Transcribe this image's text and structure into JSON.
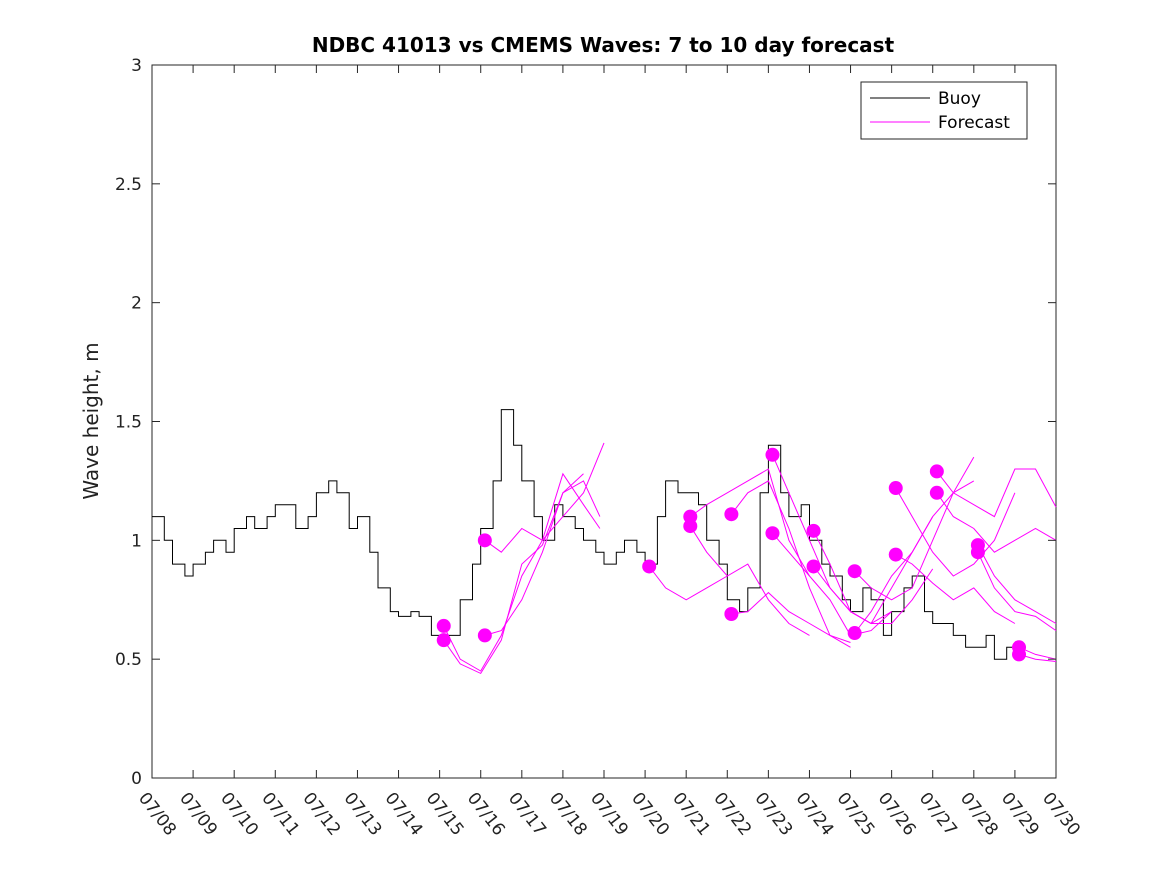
{
  "chart_data": {
    "type": "line",
    "title": "NDBC 41013 vs CMEMS Waves: 7 to 10 day forecast",
    "xlabel": "",
    "ylabel": "Wave height, m",
    "xlim": [
      "07/08",
      "07/30"
    ],
    "ylim": [
      0,
      3
    ],
    "x_tick_labels": [
      "07/08",
      "07/09",
      "07/10",
      "07/11",
      "07/12",
      "07/13",
      "07/14",
      "07/15",
      "07/16",
      "07/17",
      "07/18",
      "07/19",
      "07/20",
      "07/21",
      "07/22",
      "07/23",
      "07/24",
      "07/25",
      "07/26",
      "07/27",
      "07/28",
      "07/29",
      "07/30"
    ],
    "y_ticks": [
      0,
      0.5,
      1,
      1.5,
      2,
      2.5,
      3
    ],
    "y_tick_labels": [
      "0",
      "0.5",
      "1",
      "1.5",
      "2",
      "2.5",
      "3"
    ],
    "grid": false,
    "legend": {
      "position": "top-right",
      "entries": [
        "Buoy",
        "Forecast"
      ]
    },
    "colors": {
      "buoy": "#000000",
      "forecast": "#ff00ff"
    },
    "series": [
      {
        "name": "Buoy",
        "x_day_of_july": [
          8.0,
          8.3,
          8.5,
          8.8,
          9.0,
          9.3,
          9.5,
          9.8,
          10.0,
          10.3,
          10.5,
          10.8,
          11.0,
          11.3,
          11.5,
          11.8,
          12.0,
          12.3,
          12.5,
          12.8,
          13.0,
          13.3,
          13.5,
          13.8,
          14.0,
          14.3,
          14.5,
          14.8,
          15.0,
          15.3,
          15.5,
          15.8,
          16.0,
          16.3,
          16.5,
          16.8,
          17.0,
          17.3,
          17.5,
          17.8,
          18.0,
          18.3,
          18.5,
          18.8,
          19.0,
          19.3,
          19.5,
          19.8,
          20.0,
          20.3,
          20.5,
          20.8,
          21.0,
          21.3,
          21.5,
          21.8,
          22.0,
          22.3,
          22.5,
          22.8,
          23.0,
          23.3,
          23.5,
          23.8,
          24.0,
          24.3,
          24.5,
          24.8,
          25.0,
          25.3,
          25.5,
          25.8,
          26.0,
          26.3,
          26.5,
          26.8,
          27.0,
          27.3,
          27.5,
          27.8,
          28.0,
          28.3,
          28.5,
          28.8,
          29.0
        ],
        "values": [
          1.1,
          1.0,
          0.9,
          0.85,
          0.9,
          0.95,
          1.0,
          0.95,
          1.05,
          1.1,
          1.05,
          1.1,
          1.15,
          1.15,
          1.05,
          1.1,
          1.2,
          1.25,
          1.2,
          1.05,
          1.1,
          0.95,
          0.8,
          0.7,
          0.68,
          0.7,
          0.68,
          0.6,
          0.6,
          0.6,
          0.75,
          0.9,
          1.05,
          1.25,
          1.55,
          1.4,
          1.25,
          1.1,
          1.0,
          1.15,
          1.1,
          1.05,
          1.0,
          0.95,
          0.9,
          0.95,
          1.0,
          0.95,
          0.9,
          1.1,
          1.25,
          1.2,
          1.2,
          1.15,
          1.0,
          0.9,
          0.75,
          0.7,
          0.8,
          1.2,
          1.4,
          1.2,
          1.1,
          1.15,
          1.0,
          0.9,
          0.85,
          0.75,
          0.7,
          0.8,
          0.75,
          0.6,
          0.7,
          0.8,
          0.85,
          0.7,
          0.65,
          0.65,
          0.6,
          0.55,
          0.55,
          0.6,
          0.5,
          0.55,
          0.5
        ]
      },
      {
        "name": "Forecast",
        "runs": [
          {
            "x_day_of_july": [
              15.1,
              15.5,
              16.0,
              16.5,
              17.0,
              17.5,
              18.0,
              18.5,
              18.9
            ],
            "values": [
              0.64,
              0.5,
              0.45,
              0.6,
              0.85,
              1.0,
              1.28,
              1.15,
              1.05
            ]
          },
          {
            "x_day_of_july": [
              15.1,
              15.5,
              16.0,
              16.5,
              17.0,
              17.5,
              18.0,
              18.5,
              18.9
            ],
            "values": [
              0.58,
              0.48,
              0.44,
              0.58,
              0.9,
              0.98,
              1.2,
              1.25,
              1.1
            ]
          },
          {
            "x_day_of_july": [
              16.1,
              16.5,
              17.0,
              17.5,
              18.0,
              18.5,
              19.0
            ],
            "values": [
              1.0,
              0.95,
              1.05,
              1.0,
              1.1,
              1.2,
              1.41
            ]
          },
          {
            "x_day_of_july": [
              16.1,
              16.5,
              17.0,
              17.5,
              18.0,
              18.5
            ],
            "values": [
              0.6,
              0.62,
              0.75,
              0.95,
              1.2,
              1.28
            ]
          },
          {
            "x_day_of_july": [
              20.1,
              20.5,
              21.0,
              21.5,
              22.0
            ],
            "values": [
              0.89,
              0.8,
              0.75,
              0.8,
              0.85
            ]
          },
          {
            "x_day_of_july": [
              21.1,
              21.5,
              22.0,
              22.5,
              23.0,
              23.5,
              24.0
            ],
            "values": [
              1.1,
              1.15,
              1.2,
              1.25,
              1.3,
              1.0,
              0.85
            ]
          },
          {
            "x_day_of_july": [
              21.1,
              21.5,
              22.0,
              22.5,
              23.0,
              23.5,
              24.0
            ],
            "values": [
              1.06,
              0.95,
              0.85,
              0.9,
              0.75,
              0.65,
              0.6
            ]
          },
          {
            "x_day_of_july": [
              22.1,
              22.5,
              23.0,
              23.5,
              24.0,
              24.5,
              25.0
            ],
            "values": [
              1.11,
              1.2,
              1.25,
              1.05,
              0.8,
              0.6,
              0.57
            ]
          },
          {
            "x_day_of_july": [
              22.1,
              22.5,
              23.0,
              23.5,
              24.0,
              24.5,
              25.0
            ],
            "values": [
              0.69,
              0.7,
              0.78,
              0.7,
              0.65,
              0.6,
              0.55
            ]
          },
          {
            "x_day_of_july": [
              23.1,
              23.5,
              24.0,
              24.5,
              25.0,
              25.5,
              26.0
            ],
            "values": [
              1.36,
              1.2,
              1.0,
              0.8,
              0.7,
              0.65,
              0.7
            ]
          },
          {
            "x_day_of_july": [
              23.1,
              23.5,
              24.0,
              24.5,
              25.0,
              25.5,
              26.0
            ],
            "values": [
              1.03,
              0.95,
              0.85,
              0.75,
              0.6,
              0.62,
              0.7
            ]
          },
          {
            "x_day_of_july": [
              24.1,
              24.5,
              25.0,
              25.5,
              26.0,
              26.5,
              27.0
            ],
            "values": [
              1.04,
              0.9,
              0.7,
              0.65,
              0.65,
              0.75,
              0.88
            ]
          },
          {
            "x_day_of_july": [
              24.1,
              24.5,
              25.0,
              25.5,
              26.0,
              26.5,
              27.0
            ],
            "values": [
              0.89,
              0.8,
              0.7,
              0.65,
              0.8,
              0.95,
              1.1
            ]
          },
          {
            "x_day_of_july": [
              25.1,
              25.5,
              26.0,
              26.5,
              27.0,
              27.5,
              28.0
            ],
            "values": [
              0.87,
              0.8,
              0.75,
              0.8,
              1.0,
              1.2,
              1.35
            ]
          },
          {
            "x_day_of_july": [
              25.1,
              25.5,
              26.0,
              26.5,
              27.0,
              27.5,
              28.0
            ],
            "values": [
              0.61,
              0.7,
              0.85,
              0.95,
              1.1,
              1.2,
              1.25
            ]
          },
          {
            "x_day_of_july": [
              26.1,
              26.5,
              27.0,
              27.5,
              28.0,
              28.5,
              29.0
            ],
            "values": [
              1.22,
              1.1,
              0.95,
              0.85,
              0.9,
              1.0,
              1.2
            ]
          },
          {
            "x_day_of_july": [
              26.1,
              26.5,
              27.0,
              27.5,
              28.0,
              28.5,
              29.0
            ],
            "values": [
              0.94,
              0.9,
              0.82,
              0.75,
              0.8,
              0.7,
              0.65
            ]
          },
          {
            "x_day_of_july": [
              27.1,
              27.5,
              28.0,
              28.5,
              29.0,
              29.5,
              30.0
            ],
            "values": [
              1.29,
              1.2,
              1.15,
              1.1,
              1.3,
              1.3,
              1.14
            ]
          },
          {
            "x_day_of_july": [
              27.1,
              27.5,
              28.0,
              28.5,
              29.0,
              29.5,
              30.0
            ],
            "values": [
              1.2,
              1.1,
              1.05,
              0.95,
              1.0,
              1.05,
              1.0
            ]
          },
          {
            "x_day_of_july": [
              28.1,
              28.5,
              29.0,
              29.5,
              30.0
            ],
            "values": [
              0.98,
              0.85,
              0.75,
              0.7,
              0.65
            ]
          },
          {
            "x_day_of_july": [
              28.1,
              28.5,
              29.0,
              29.5,
              30.0
            ],
            "values": [
              0.95,
              0.8,
              0.7,
              0.68,
              0.62
            ]
          },
          {
            "x_day_of_july": [
              29.1,
              29.5,
              30.0
            ],
            "values": [
              0.55,
              0.52,
              0.5
            ]
          },
          {
            "x_day_of_july": [
              29.1,
              29.5,
              30.0
            ],
            "values": [
              0.52,
              0.5,
              0.49
            ]
          }
        ]
      }
    ]
  }
}
